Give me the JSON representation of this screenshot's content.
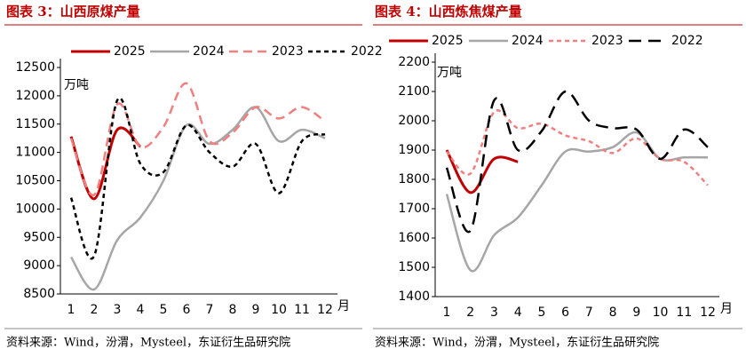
{
  "chart_data": [
    {
      "type": "line",
      "title": "图表 3：山西原煤产量",
      "unit": "万吨",
      "xlabel": "月",
      "source": "资料来源：Wind，汾渭，Mysteel，东证衍生品研究院",
      "categories": [
        "1",
        "2",
        "3",
        "4",
        "5",
        "6",
        "7",
        "8",
        "9",
        "10",
        "11",
        "12"
      ],
      "ylim": [
        8500,
        12500
      ],
      "yticks": [
        8500,
        9000,
        9500,
        10000,
        10500,
        11000,
        11500,
        12000,
        12500
      ],
      "series": [
        {
          "name": "2025",
          "color": "#c00000",
          "values": [
            11280,
            10180,
            11400,
            11100,
            null,
            null,
            null,
            null,
            null,
            null,
            null,
            null
          ]
        },
        {
          "name": "2024",
          "color": "#a6a6a6",
          "values": [
            9150,
            8580,
            9450,
            9850,
            10500,
            11480,
            11150,
            11400,
            11800,
            11200,
            11400,
            11250
          ]
        },
        {
          "name": "2023",
          "color": "#f07f7f",
          "values": [
            11250,
            10250,
            11850,
            11100,
            11450,
            12220,
            11200,
            11350,
            11800,
            11600,
            11800,
            11550
          ]
        },
        {
          "name": "2022",
          "color": "#000000",
          "values": [
            10200,
            9170,
            11920,
            10800,
            10650,
            11480,
            11000,
            10750,
            11150,
            10280,
            11200,
            11320
          ]
        }
      ]
    },
    {
      "type": "line",
      "title": "图表 4：山西炼焦煤产量",
      "unit": "万吨",
      "xlabel": "月",
      "source": "资料来源：Wind，汾渭，Mysteel，东证衍生品研究院",
      "categories": [
        "1",
        "2",
        "3",
        "4",
        "5",
        "6",
        "7",
        "8",
        "9",
        "10",
        "11",
        "12"
      ],
      "ylim": [
        1400,
        2200
      ],
      "yticks": [
        1400,
        1500,
        1600,
        1700,
        1800,
        1900,
        2000,
        2100,
        2200
      ],
      "series": [
        {
          "name": "2025",
          "color": "#c00000",
          "values": [
            1900,
            1755,
            1870,
            1860,
            null,
            null,
            null,
            null,
            null,
            null,
            null,
            null
          ]
        },
        {
          "name": "2024",
          "color": "#a6a6a6",
          "values": [
            1750,
            1490,
            1610,
            1670,
            1780,
            1895,
            1895,
            1910,
            1960,
            1870,
            1875,
            1875
          ]
        },
        {
          "name": "2023",
          "color": "#f07f7f",
          "values": [
            1895,
            1820,
            2030,
            1975,
            1990,
            1950,
            1930,
            1890,
            1940,
            1870,
            1860,
            1780
          ]
        },
        {
          "name": "2022",
          "color": "#000000",
          "values": [
            1840,
            1625,
            2070,
            1900,
            1965,
            2100,
            2000,
            1975,
            1970,
            1870,
            1970,
            1910
          ]
        }
      ]
    }
  ]
}
